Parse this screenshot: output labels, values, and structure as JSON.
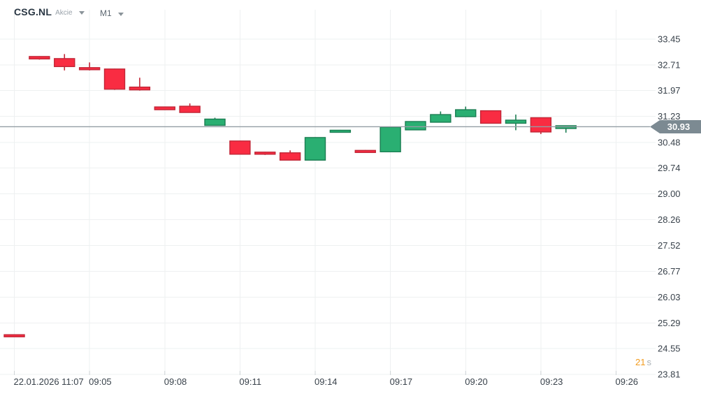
{
  "header": {
    "symbol": "CSG.NL",
    "instrument_type": "Akcie",
    "timeframe": "M1"
  },
  "countdown": {
    "value": "21",
    "unit": "s"
  },
  "colors": {
    "up_fill": "#2aaf72",
    "up_border": "#1c7e53",
    "down_fill": "#f92c42",
    "down_border": "#c12737",
    "grid": "#eef0f1",
    "axis_text": "#39424b",
    "tick": "#cfd4d7",
    "price_line": "#939ea4",
    "price_tag_bg": "#7c8a92",
    "price_tag_text": "#ffffff",
    "countdown_value": "#f29b1d",
    "countdown_unit": "#aab1b6"
  },
  "chart_data": {
    "type": "candlestick",
    "title": "CSG.NL Akcie M1 candlestick chart",
    "symbol": "CSG.NL",
    "timeframe": "M1",
    "current_price": 30.93,
    "grid": "on",
    "y_axis_labels": [
      "33.45",
      "32.71",
      "31.97",
      "31.23",
      "30.48",
      "29.74",
      "29.00",
      "28.26",
      "27.52",
      "26.77",
      "26.03",
      "25.29",
      "24.55",
      "23.81"
    ],
    "x_ticks": [
      {
        "slot": 0,
        "label": "22.01.2026  11:07"
      },
      {
        "slot": 3,
        "label": "09:05"
      },
      {
        "slot": 6,
        "label": "09:08"
      },
      {
        "slot": 9,
        "label": "09:11"
      },
      {
        "slot": 12,
        "label": "09:14"
      },
      {
        "slot": 15,
        "label": "09:17"
      },
      {
        "slot": 18,
        "label": "09:20"
      },
      {
        "slot": 21,
        "label": "09:23"
      },
      {
        "slot": 24,
        "label": "09:26"
      }
    ],
    "candles": [
      {
        "slot": 0,
        "time": "11:07",
        "o": 24.95,
        "h": 24.96,
        "l": 24.89,
        "c": 24.9
      },
      {
        "slot": 1,
        "time": "09:03",
        "o": 32.95,
        "h": 32.96,
        "l": 32.86,
        "c": 32.88
      },
      {
        "slot": 2,
        "time": "09:04",
        "o": 32.89,
        "h": 33.02,
        "l": 32.55,
        "c": 32.66
      },
      {
        "slot": 3,
        "time": "09:05",
        "o": 32.63,
        "h": 32.78,
        "l": 32.55,
        "c": 32.57
      },
      {
        "slot": 4,
        "time": "09:06",
        "o": 32.59,
        "h": 32.6,
        "l": 31.99,
        "c": 32.01
      },
      {
        "slot": 5,
        "time": "09:07",
        "o": 32.07,
        "h": 32.34,
        "l": 31.97,
        "c": 31.99
      },
      {
        "slot": 6,
        "time": "09:08",
        "o": 31.5,
        "h": 31.51,
        "l": 31.41,
        "c": 31.42
      },
      {
        "slot": 7,
        "time": "09:09",
        "o": 31.52,
        "h": 31.6,
        "l": 31.34,
        "c": 31.34
      },
      {
        "slot": 8,
        "time": "09:10",
        "o": 30.97,
        "h": 31.19,
        "l": 30.96,
        "c": 31.15
      },
      {
        "slot": 9,
        "time": "09:11",
        "o": 30.52,
        "h": 30.53,
        "l": 30.13,
        "c": 30.14
      },
      {
        "slot": 10,
        "time": "09:12",
        "o": 30.2,
        "h": 30.21,
        "l": 30.12,
        "c": 30.14
      },
      {
        "slot": 11,
        "time": "09:13",
        "o": 30.18,
        "h": 30.25,
        "l": 29.96,
        "c": 29.97
      },
      {
        "slot": 12,
        "time": "09:14",
        "o": 29.97,
        "h": 30.63,
        "l": 29.96,
        "c": 30.62
      },
      {
        "slot": 13,
        "time": "09:15",
        "o": 30.78,
        "h": 30.84,
        "l": 30.77,
        "c": 30.83
      },
      {
        "slot": 14,
        "time": "09:16",
        "o": 30.25,
        "h": 30.26,
        "l": 30.18,
        "c": 30.19
      },
      {
        "slot": 15,
        "time": "09:17",
        "o": 30.21,
        "h": 30.93,
        "l": 30.2,
        "c": 30.92
      },
      {
        "slot": 16,
        "time": "09:18",
        "o": 30.84,
        "h": 31.09,
        "l": 30.83,
        "c": 31.08
      },
      {
        "slot": 17,
        "time": "09:19",
        "o": 31.06,
        "h": 31.37,
        "l": 31.05,
        "c": 31.28
      },
      {
        "slot": 18,
        "time": "09:20",
        "o": 31.22,
        "h": 31.51,
        "l": 31.21,
        "c": 31.42
      },
      {
        "slot": 19,
        "time": "09:21",
        "o": 31.39,
        "h": 31.4,
        "l": 31.02,
        "c": 31.03
      },
      {
        "slot": 20,
        "time": "09:22",
        "o": 31.03,
        "h": 31.28,
        "l": 30.83,
        "c": 31.12
      },
      {
        "slot": 21,
        "time": "09:23",
        "o": 31.19,
        "h": 31.2,
        "l": 30.72,
        "c": 30.78
      },
      {
        "slot": 22,
        "time": "09:24",
        "o": 30.88,
        "h": 30.97,
        "l": 30.76,
        "c": 30.96
      }
    ]
  }
}
